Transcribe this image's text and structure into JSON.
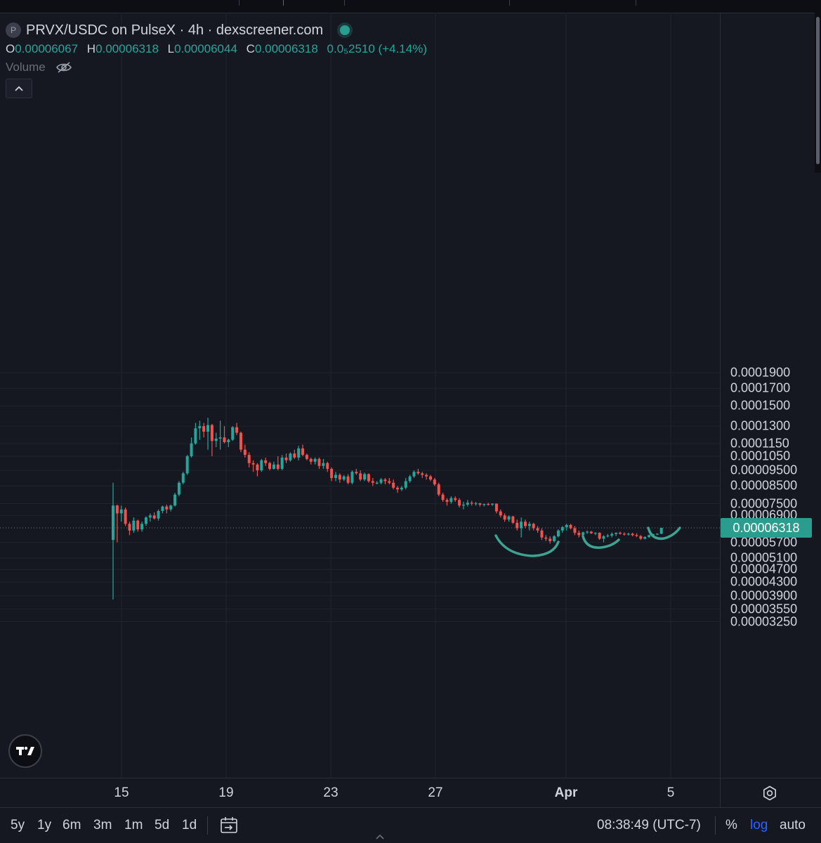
{
  "legend": {
    "symbol_badge": "P",
    "title": "PRVX/USDC on PulseX · 4h · dexscreener.com",
    "ohlc": {
      "o_key": "O",
      "o": "0.00006067",
      "h_key": "H",
      "h": "0.00006318",
      "l_key": "L",
      "l": "0.00006044",
      "c_key": "C",
      "c": "0.00006318",
      "change": "0.0₅2510 (+4.14%)"
    },
    "volume_label": "Volume"
  },
  "price_axis": {
    "labels": [
      "0.0001900",
      "0.0001700",
      "0.0001500",
      "0.0001300",
      "0.0001150",
      "0.0001050",
      "0.00009500",
      "0.00008500",
      "0.00007500",
      "0.00006900",
      "0.00005700",
      "0.00005100",
      "0.00004700",
      "0.00004300",
      "0.00003900",
      "0.00003550",
      "0.00003250"
    ],
    "current_price": "0.00006318"
  },
  "time_axis": {
    "labels": [
      "15",
      "19",
      "23",
      "27",
      "Apr",
      "5"
    ]
  },
  "bottom_bar": {
    "ranges": [
      "5y",
      "1y",
      "6m",
      "3m",
      "1m",
      "5d",
      "1d"
    ],
    "clock": "08:38:49 (UTC-7)",
    "percent": "%",
    "log": "log",
    "auto": "auto"
  },
  "colors": {
    "up": "#26a69a",
    "down": "#ef5350",
    "background": "#151821",
    "annotation": "#3fa392",
    "price_tag": "#2a9d8f",
    "log_active": "#2962ff"
  },
  "chart_data": {
    "type": "candlestick",
    "title": "PRVX/USDC on PulseX · 4h · dexscreener.com",
    "scale": "log",
    "x_ticks": [
      "15",
      "19",
      "23",
      "27",
      "Apr",
      "5"
    ],
    "y_ticks": [
      0.00019,
      0.00017,
      0.00015,
      0.00013,
      0.000115,
      0.000105,
      9.5e-05,
      8.5e-05,
      7.5e-05,
      6.9e-05,
      5.7e-05,
      5.1e-05,
      4.7e-05,
      4.3e-05,
      3.9e-05,
      3.55e-05,
      3.25e-05
    ],
    "current_price": 6.318e-05,
    "candles": [
      [
        5.8e-05,
        8.7e-05,
        3.8e-05,
        7.4e-05
      ],
      [
        7.4e-05,
        7.45e-05,
        5.7e-05,
        7e-05
      ],
      [
        7e-05,
        7.4e-05,
        6.6e-05,
        7.2e-05
      ],
      [
        7.2e-05,
        7.3e-05,
        6.4e-05,
        6.5e-05
      ],
      [
        6.5e-05,
        6.6e-05,
        6e-05,
        6.2e-05
      ],
      [
        6.2e-05,
        6.8e-05,
        6.1e-05,
        6.65e-05
      ],
      [
        6.65e-05,
        6.7e-05,
        6.15e-05,
        6.25e-05
      ],
      [
        6.25e-05,
        6.6e-05,
        6.15e-05,
        6.5e-05
      ],
      [
        6.5e-05,
        6.85e-05,
        6.4e-05,
        6.8e-05
      ],
      [
        6.8e-05,
        7e-05,
        6.6e-05,
        6.9e-05
      ],
      [
        6.9e-05,
        7.05e-05,
        6.7e-05,
        6.75e-05
      ],
      [
        6.75e-05,
        7.2e-05,
        6.65e-05,
        7.12e-05
      ],
      [
        7.12e-05,
        7.4e-05,
        7e-05,
        7.35e-05
      ],
      [
        7.35e-05,
        7.45e-05,
        7e-05,
        7.2e-05
      ],
      [
        7.2e-05,
        7.45e-05,
        7.1e-05,
        7.4e-05
      ],
      [
        7.4e-05,
        8.1e-05,
        7.35e-05,
        8e-05
      ],
      [
        8e-05,
        8.8e-05,
        7.9e-05,
        8.7e-05
      ],
      [
        8.7e-05,
        9.4e-05,
        8.6e-05,
        9.3e-05
      ],
      [
        9.3e-05,
        0.000106,
        9.2e-05,
        0.000105
      ],
      [
        0.000105,
        0.00012,
        0.000104,
        0.000115
      ],
      [
        0.000115,
        0.000133,
        0.000114,
        0.000128
      ],
      [
        0.000128,
        0.000135,
        0.000118,
        0.00013
      ],
      [
        0.00013,
        0.000133,
        0.00012,
        0.000125
      ],
      [
        0.000125,
        0.000138,
        0.00011,
        0.000131
      ],
      [
        0.000131,
        0.000132,
        0.000105,
        0.000117
      ],
      [
        0.000117,
        0.000124,
        0.000112,
        0.000119
      ],
      [
        0.000119,
        0.000135,
        0.00011,
        0.00012
      ],
      [
        0.00012,
        0.00013,
        0.000115,
        0.000116
      ],
      [
        0.000116,
        0.000119,
        0.000112,
        0.000118
      ],
      [
        0.000118,
        0.00013,
        0.000117,
        0.000129
      ],
      [
        0.000129,
        0.000133,
        0.000122,
        0.000124
      ],
      [
        0.000124,
        0.000125,
        0.000108,
        0.00011
      ],
      [
        0.00011,
        0.000114,
        0.000104,
        0.000106
      ],
      [
        0.000106,
        0.000108,
        9.7e-05,
        0.0001
      ],
      [
        0.0001,
        0.000102,
        9.4e-05,
        9.9e-05
      ],
      [
        9.9e-05,
        0.0001,
        9.1e-05,
        9.5e-05
      ],
      [
        9.5e-05,
        0.000103,
        9.4e-05,
        0.000102
      ],
      [
        0.000102,
        0.000104,
        9.8e-05,
        0.0001
      ],
      [
        0.0001,
        0.000101,
        9.5e-05,
        9.6e-05
      ],
      [
        9.6e-05,
        0.000101,
        9.55e-05,
        9.9e-05
      ],
      [
        9.9e-05,
        0.000105,
        9.5e-05,
        9.6e-05
      ],
      [
        9.6e-05,
        0.000106,
        9.5e-05,
        0.000104
      ],
      [
        0.000104,
        0.000107,
        0.0001,
        0.000102
      ],
      [
        0.000102,
        0.000108,
        0.000101,
        0.000107
      ],
      [
        0.000107,
        0.00011,
        0.000103,
        0.000104
      ],
      [
        0.000104,
        0.000113,
        0.000102,
        0.000111
      ],
      [
        0.000111,
        0.000114,
        0.000105,
        0.000106
      ],
      [
        0.000106,
        0.000107,
        0.000102,
        0.000103
      ],
      [
        0.000103,
        0.000104,
        9.9e-05,
        0.000101
      ],
      [
        0.000101,
        0.000104,
        9.9e-05,
        0.000103
      ],
      [
        0.000103,
        0.000104,
        9.6e-05,
        9.8e-05
      ],
      [
        9.8e-05,
        0.000103,
        9.6e-05,
        0.0001
      ],
      [
        0.0001,
        0.000101,
        9.4e-05,
        9.6e-05
      ],
      [
        9.6e-05,
        9.7e-05,
        8.8e-05,
        9e-05
      ],
      [
        9e-05,
        9.4e-05,
        8.8e-05,
        9.2e-05
      ],
      [
        9.2e-05,
        9.3e-05,
        8.7e-05,
        8.9e-05
      ],
      [
        8.9e-05,
        9.2e-05,
        8.8e-05,
        9.1e-05
      ],
      [
        9.1e-05,
        9.25e-05,
        8.6e-05,
        8.7e-05
      ],
      [
        8.7e-05,
        9.5e-05,
        8.6e-05,
        9.4e-05
      ],
      [
        9.4e-05,
        9.6e-05,
        9.2e-05,
        9.3e-05
      ],
      [
        9.3e-05,
        9.5e-05,
        8.8e-05,
        8.9e-05
      ],
      [
        8.9e-05,
        9.35e-05,
        8.8e-05,
        9.25e-05
      ],
      [
        9.25e-05,
        9.3e-05,
        8.7e-05,
        8.8e-05
      ],
      [
        8.8e-05,
        9e-05,
        8.5e-05,
        8.7e-05
      ],
      [
        8.7e-05,
        8.8e-05,
        8.6e-05,
        8.7e-05
      ],
      [
        8.7e-05,
        9e-05,
        8.6e-05,
        8.9e-05
      ],
      [
        8.9e-05,
        9e-05,
        8.6e-05,
        8.8e-05
      ],
      [
        8.8e-05,
        9e-05,
        8.6e-05,
        8.7e-05
      ],
      [
        8.7e-05,
        8.9e-05,
        8.3e-05,
        8.4e-05
      ],
      [
        8.4e-05,
        8.5e-05,
        8.1e-05,
        8.3e-05
      ],
      [
        8.3e-05,
        8.5e-05,
        8.2e-05,
        8.4e-05
      ],
      [
        8.4e-05,
        9e-05,
        8.3e-05,
        8.8e-05
      ],
      [
        8.8e-05,
        9.2e-05,
        8.7e-05,
        9.1e-05
      ],
      [
        9.1e-05,
        9.5e-05,
        9e-05,
        9.4e-05
      ],
      [
        9.4e-05,
        9.6e-05,
        9.2e-05,
        9.3e-05
      ],
      [
        9.3e-05,
        9.4e-05,
        9e-05,
        9.2e-05
      ],
      [
        9.2e-05,
        9.3e-05,
        8.9e-05,
        9.1e-05
      ],
      [
        9.1e-05,
        9.2e-05,
        8.8e-05,
        8.9e-05
      ],
      [
        8.9e-05,
        9e-05,
        8.5e-05,
        8.6e-05
      ],
      [
        8.6e-05,
        8.7e-05,
        7.9e-05,
        8e-05
      ],
      [
        8e-05,
        8.1e-05,
        7.6e-05,
        7.7e-05
      ],
      [
        7.7e-05,
        7.8e-05,
        7.4e-05,
        7.6e-05
      ],
      [
        7.6e-05,
        7.9e-05,
        7.5e-05,
        7.8e-05
      ],
      [
        7.8e-05,
        7.9e-05,
        7.6e-05,
        7.7e-05
      ],
      [
        7.7e-05,
        7.8e-05,
        7.3e-05,
        7.4e-05
      ],
      [
        7.4e-05,
        7.6e-05,
        7.2e-05,
        7.45e-05
      ],
      [
        7.45e-05,
        7.7e-05,
        7.35e-05,
        7.55e-05
      ],
      [
        7.55e-05,
        7.65e-05,
        7.4e-05,
        7.5e-05
      ],
      [
        7.5e-05,
        7.6e-05,
        7.4e-05,
        7.52e-05
      ],
      [
        7.52e-05,
        7.55e-05,
        7.35e-05,
        7.45e-05
      ],
      [
        7.45e-05,
        7.5e-05,
        7.35e-05,
        7.48e-05
      ],
      [
        7.48e-05,
        7.55e-05,
        7.4e-05,
        7.45e-05
      ],
      [
        7.45e-05,
        7.52e-05,
        7.38e-05,
        7.5e-05
      ],
      [
        7.5e-05,
        7.52e-05,
        7e-05,
        7.1e-05
      ],
      [
        7.1e-05,
        7.2e-05,
        6.8e-05,
        6.9e-05
      ],
      [
        6.9e-05,
        7e-05,
        6.6e-05,
        6.7e-05
      ],
      [
        6.7e-05,
        6.9e-05,
        6.6e-05,
        6.85e-05
      ],
      [
        6.85e-05,
        6.88e-05,
        6.5e-05,
        6.55e-05
      ],
      [
        6.55e-05,
        6.7e-05,
        6.2e-05,
        6.3e-05
      ],
      [
        6.3e-05,
        6.8e-05,
        5.9e-05,
        6.6e-05
      ],
      [
        6.6e-05,
        6.7e-05,
        6.3e-05,
        6.4e-05
      ],
      [
        6.4e-05,
        6.6e-05,
        6.2e-05,
        6.5e-05
      ],
      [
        6.5e-05,
        6.55e-05,
        6.2e-05,
        6.3e-05
      ],
      [
        6.3e-05,
        6.4e-05,
        6.1e-05,
        6.2e-05
      ],
      [
        6.2e-05,
        6.3e-05,
        5.8e-05,
        5.9e-05
      ],
      [
        5.9e-05,
        6e-05,
        5.75e-05,
        5.85e-05
      ],
      [
        5.85e-05,
        5.95e-05,
        5.65e-05,
        5.75e-05
      ],
      [
        5.75e-05,
        6e-05,
        5.7e-05,
        5.95e-05
      ],
      [
        5.95e-05,
        6.25e-05,
        5.9e-05,
        6.2e-05
      ],
      [
        6.2e-05,
        6.4e-05,
        6.1e-05,
        6.35e-05
      ],
      [
        6.35e-05,
        6.5e-05,
        6.2e-05,
        6.45e-05
      ],
      [
        6.45e-05,
        6.5e-05,
        6.25e-05,
        6.3e-05
      ],
      [
        6.3e-05,
        6.4e-05,
        6e-05,
        6.1e-05
      ],
      [
        6.1e-05,
        6.2e-05,
        5.9e-05,
        6e-05
      ],
      [
        6e-05,
        6.15e-05,
        5.95e-05,
        6.12e-05
      ],
      [
        6.12e-05,
        6.2e-05,
        6.05e-05,
        6.15e-05
      ],
      [
        6.15e-05,
        6.18e-05,
        6.05e-05,
        6.08e-05
      ],
      [
        6.08e-05,
        6.12e-05,
        6e-05,
        6.1e-05
      ],
      [
        6.1e-05,
        6.12e-05,
        5.8e-05,
        5.85e-05
      ],
      [
        5.85e-05,
        6e-05,
        5.7e-05,
        5.95e-05
      ],
      [
        5.95e-05,
        6.05e-05,
        5.9e-05,
        5.98e-05
      ],
      [
        5.98e-05,
        6.12e-05,
        5.9e-05,
        6.05e-05
      ],
      [
        6.05e-05,
        6.12e-05,
        5.96e-05,
        6.1e-05
      ],
      [
        6.1e-05,
        6.15e-05,
        6.02e-05,
        6.06e-05
      ],
      [
        6.06e-05,
        6.12e-05,
        5.98e-05,
        6.04e-05
      ],
      [
        6.04e-05,
        6.1e-05,
        5.98e-05,
        6.06e-05
      ],
      [
        6.06e-05,
        6.1e-05,
        5.95e-05,
        6e-05
      ],
      [
        6e-05,
        6.08e-05,
        5.92e-05,
        5.96e-05
      ],
      [
        5.96e-05,
        6e-05,
        5.8e-05,
        5.85e-05
      ],
      [
        5.85e-05,
        5.95e-05,
        5.82e-05,
        5.92e-05
      ],
      [
        5.92e-05,
        6.02e-05,
        5.88e-05,
        6e-05
      ],
      [
        6e-05,
        6.06e-05,
        5.96e-05,
        6.04e-05
      ],
      [
        6.04e-05,
        6.08e-05,
        6e-05,
        6.06e-05
      ],
      [
        6.06e-05,
        6.32e-05,
        6.04e-05,
        6.32e-05
      ]
    ]
  }
}
